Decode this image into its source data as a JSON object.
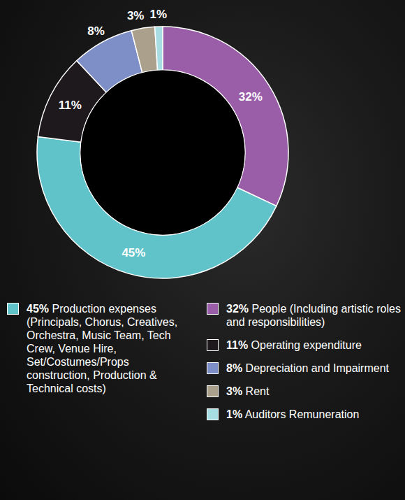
{
  "chart_data": {
    "type": "donut",
    "categories": [
      "People (Including artistic roles and responsibilities)",
      "Production expenses (Principals, Chorus, Creatives, Orchestra, Music Team, Tech Crew, Venue Hire, Set/Costumes/Props construction, Production & Technical costs)",
      "Operating expenditure",
      "Depreciation and Impairment",
      "Rent",
      "Auditors Remuneration"
    ],
    "values": [
      32,
      45,
      11,
      8,
      3,
      1
    ],
    "value_labels": [
      "32%",
      "45%",
      "11%",
      "8%",
      "3%",
      "1%"
    ],
    "colors": [
      "#9a5ea8",
      "#5fc3c9",
      "#1d191d",
      "#7e8ec6",
      "#aaa08c",
      "#a9dde4"
    ],
    "data_labels": true,
    "legend": "bottom"
  }
}
